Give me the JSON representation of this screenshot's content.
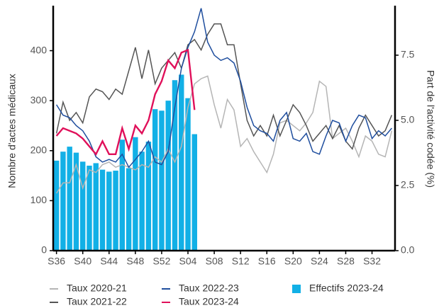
{
  "chart_data": {
    "type": "bar-line",
    "y_label": "Nombre d'actes médicaux",
    "y2_label": "Part de l'activité codée (%)",
    "categories": [
      "S36",
      null,
      null,
      null,
      "S40",
      null,
      null,
      null,
      "S44",
      null,
      null,
      null,
      "S48",
      null,
      null,
      null,
      "S52",
      null,
      null,
      null,
      "S04",
      null,
      null,
      null,
      "S08",
      null,
      null,
      null,
      "S12",
      null,
      null,
      null,
      "S16",
      null,
      null,
      null,
      "S20",
      null,
      null,
      null,
      "S24",
      null,
      null,
      null,
      "S28",
      null,
      null,
      null,
      "S32",
      null,
      null,
      null
    ],
    "ylim": [
      0,
      490
    ],
    "yticks": [
      0,
      100,
      200,
      300,
      400
    ],
    "y2lim": [
      0,
      9.4
    ],
    "y2ticks": [
      {
        "value": 0,
        "label": "0.0"
      },
      2.5,
      {
        "value": 5,
        "label": "5.0"
      },
      7.5
    ],
    "series": [
      {
        "name": "Taux 2020-21",
        "type": "line",
        "axis": "y2",
        "color": "#b5b5b5",
        "values": [
          2.2,
          2.6,
          2.6,
          3.3,
          2.4,
          3.1,
          3.0,
          3.3,
          3.4,
          3.2,
          3.3,
          3.2,
          3.1,
          3.3,
          3.2,
          3.6,
          3.4,
          3.9,
          3.4,
          4.0,
          5.5,
          6.4,
          6.6,
          6.7,
          5.6,
          4.7,
          5.8,
          5.4,
          4.0,
          4.3,
          3.8,
          3.4,
          3.0,
          3.7,
          4.9,
          5.0,
          4.8,
          4.6,
          4.9,
          5.3,
          6.5,
          6.3,
          4.3,
          4.5,
          4.7,
          4.2,
          3.6,
          4.4,
          4.2,
          3.7,
          3.6,
          4.6
        ]
      },
      {
        "name": "Taux 2021-22",
        "type": "line",
        "axis": "y2",
        "color": "#555555",
        "values": [
          4.5,
          5.7,
          5.0,
          5.3,
          4.9,
          5.9,
          6.2,
          6.1,
          5.8,
          6.2,
          6.0,
          6.9,
          7.8,
          6.6,
          7.7,
          6.4,
          7.0,
          7.3,
          7.6,
          7.0,
          7.9,
          8.1,
          7.7,
          8.3,
          8.7,
          8.7,
          7.9,
          7.9,
          6.4,
          5.0,
          4.4,
          4.8,
          4.4,
          5.2,
          4.4,
          5.0,
          5.6,
          5.3,
          4.8,
          4.2,
          4.5,
          4.8,
          4.3,
          4.8,
          4.2,
          3.9,
          4.7,
          5.2,
          4.8,
          4.4,
          4.6,
          5.2
        ]
      },
      {
        "name": "Taux 2022-23",
        "type": "line",
        "axis": "y2",
        "color": "#1f4e9e",
        "values": [
          5.6,
          5.2,
          5.1,
          4.8,
          4.6,
          4.2,
          3.6,
          3.4,
          3.5,
          3.4,
          3.7,
          3.2,
          3.5,
          3.8,
          4.2,
          3.4,
          3.3,
          3.8,
          5.5,
          7.0,
          7.8,
          8.4,
          9.3,
          8.0,
          7.5,
          7.3,
          7.4,
          7.2,
          6.5,
          5.5,
          4.8,
          4.6,
          4.5,
          4.2,
          5.0,
          5.3,
          4.3,
          4.2,
          4.5,
          3.8,
          3.7,
          4.4,
          5.0,
          4.9,
          4.2,
          4.8,
          5.2,
          5.1,
          4.3,
          4.6,
          4.4,
          4.7
        ]
      },
      {
        "name": "Taux 2023-24",
        "type": "line",
        "axis": "y2",
        "color": "#e0105a",
        "values": [
          4.4,
          4.7,
          4.6,
          4.5,
          4.3,
          4.0,
          3.7,
          4.2,
          3.7,
          3.7,
          4.7,
          3.9,
          4.8,
          4.5,
          5.0,
          6.0,
          6.5,
          7.3,
          7.0,
          7.6,
          7.7,
          5.4,
          null,
          null,
          null,
          null,
          null,
          null,
          null,
          null,
          null,
          null,
          null,
          null,
          null,
          null,
          null,
          null,
          null,
          null,
          null,
          null,
          null,
          null,
          null,
          null,
          null,
          null,
          null,
          null,
          null,
          null
        ]
      },
      {
        "name": "Effectifs 2023-24",
        "type": "bar",
        "axis": "y",
        "color": "#12b0e6",
        "values": [
          180,
          198,
          208,
          196,
          178,
          170,
          175,
          162,
          158,
          160,
          222,
          165,
          227,
          198,
          218,
          283,
          280,
          300,
          341,
          352,
          305,
          233,
          null,
          null,
          null,
          null,
          null,
          null,
          null,
          null,
          null,
          null,
          null,
          null,
          null,
          null,
          null,
          null,
          null,
          null,
          null,
          null,
          null,
          null,
          null,
          null,
          null,
          null,
          null,
          null,
          null,
          null
        ]
      }
    ]
  }
}
